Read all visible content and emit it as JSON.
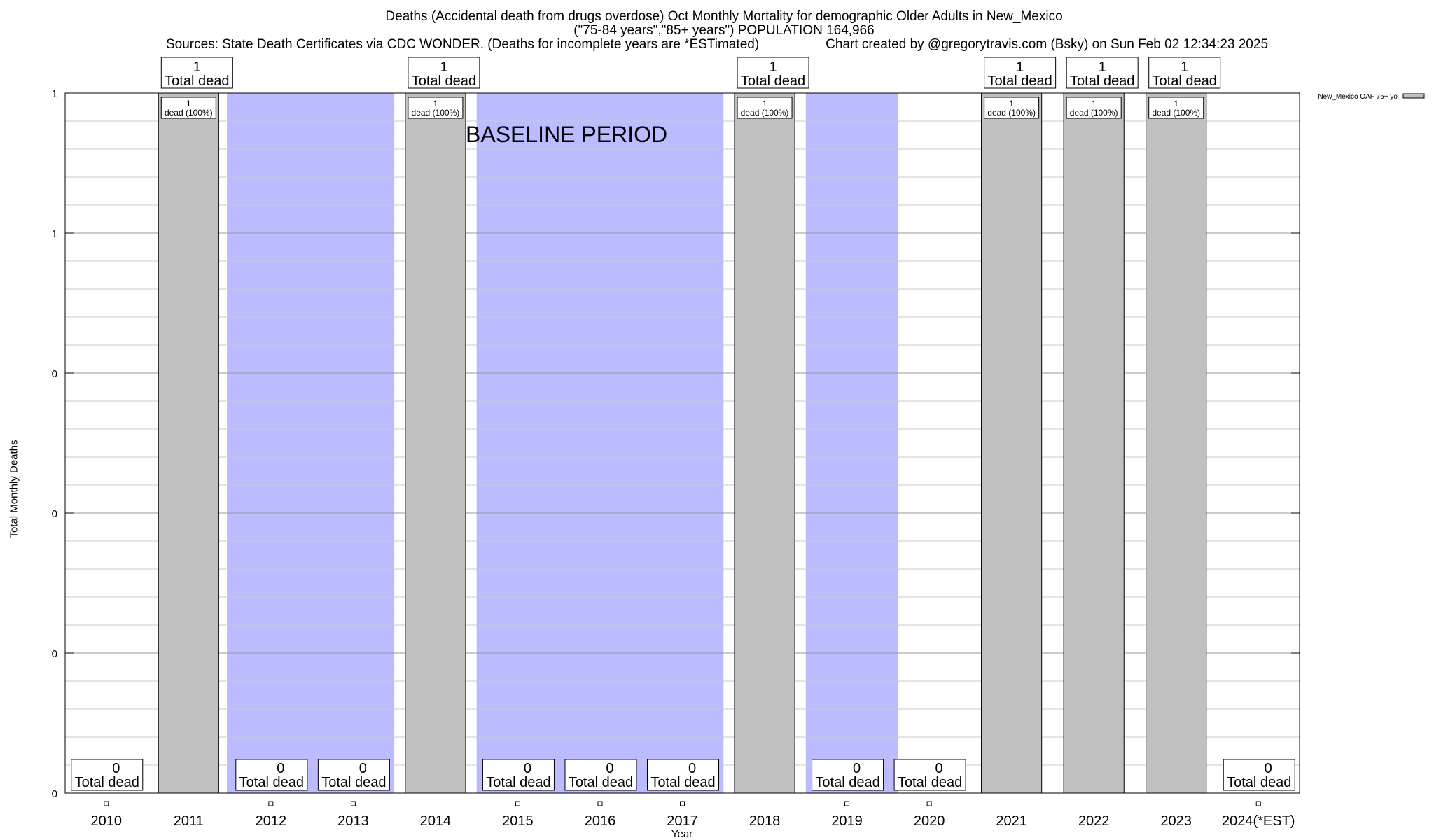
{
  "chart_data": {
    "type": "bar",
    "title": "Deaths (Accidental death from drugs overdose) Oct Monthly Mortality for demographic Older Adults in New_Mexico",
    "subtitle": "(\"75-84 years\",\"85+ years\") POPULATION 164,966",
    "sources": "Sources: State Death Certificates via CDC WONDER. (Deaths for incomplete years are *ESTimated)",
    "credit": "Chart created by @gregorytravis.com (Bsky) on Sun Feb 02 12:34:23 2025",
    "xlabel": "Year",
    "ylabel": "Total Monthly Deaths",
    "categories": [
      "2010",
      "2011",
      "2012",
      "2013",
      "2014",
      "2015",
      "2016",
      "2017",
      "2018",
      "2019",
      "2020",
      "2021",
      "2022",
      "2023",
      "2024(*EST)"
    ],
    "series": [
      {
        "name": "New_Mexico OAF 75+ yo",
        "values": [
          0,
          1,
          0,
          0,
          1,
          0,
          0,
          0,
          1,
          0,
          0,
          1,
          1,
          1,
          0
        ]
      }
    ],
    "total_labels": [
      "0",
      "1",
      "0",
      "0",
      "1",
      "0",
      "0",
      "0",
      "1",
      "0",
      "0",
      "1",
      "1",
      "1",
      "0"
    ],
    "total_caption": "Total dead",
    "bar_labels": [
      "",
      "1\ndead (100%)",
      "",
      "",
      "1\ndead (100%)",
      "",
      "",
      "",
      "1\ndead (100%)",
      "",
      "",
      "1\ndead (100%)",
      "1\ndead (100%)",
      "1\ndead (100%)",
      ""
    ],
    "ylim": [
      0,
      1
    ],
    "ytick_values": [
      0,
      0.2,
      0.4,
      0.6,
      0.8,
      1.0
    ],
    "ytick_labels": [
      "0",
      "0",
      "0",
      "0",
      "1",
      "1"
    ],
    "baseline_shading": {
      "label": "BASELINE PERIOD",
      "ranges": [
        [
          "2012",
          "2013"
        ],
        [
          "2015",
          "2017"
        ],
        [
          "2019",
          "2019"
        ]
      ],
      "color": "#bbbbff"
    },
    "bar_color": "#c0c0c0",
    "grid": true,
    "legend_position": "top-right"
  }
}
